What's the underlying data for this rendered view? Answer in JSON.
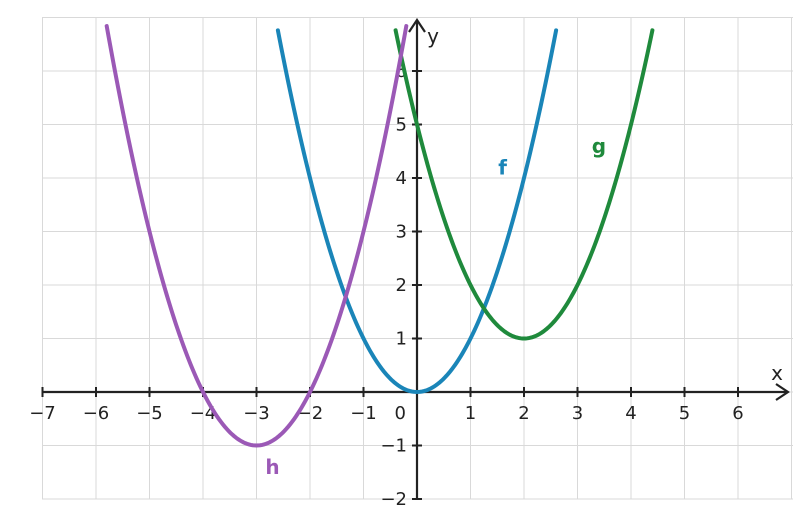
{
  "chart_data": {
    "type": "line",
    "title": "",
    "xlabel": "x",
    "ylabel": "y",
    "xlim": [
      -7,
      7
    ],
    "ylim": [
      -2,
      7
    ],
    "x_ticks": [
      -7,
      -6,
      -5,
      -4,
      -3,
      -2,
      -1,
      1,
      2,
      3,
      4,
      5,
      6
    ],
    "y_ticks": [
      -2,
      -1,
      1,
      2,
      3,
      4,
      5,
      6
    ],
    "x_tick_labels": [
      "−7",
      "−6",
      "−5",
      "−4",
      "−3",
      "−2",
      "−1",
      "1",
      "2",
      "3",
      "4",
      "5",
      "6"
    ],
    "y_tick_labels": [
      "−2",
      "−1",
      "1",
      "2",
      "3",
      "4",
      "5",
      "6"
    ],
    "origin_label": "0",
    "grid": true,
    "series": [
      {
        "name": "f",
        "color": "#1a85b8",
        "vertex": [
          0,
          0
        ],
        "x_range": [
          -2.6,
          2.6
        ],
        "label_at": [
          1.6,
          4.2
        ]
      },
      {
        "name": "g",
        "color": "#1f8a3c",
        "vertex": [
          2,
          1
        ],
        "x_range": [
          -0.4,
          4.4
        ],
        "label_at": [
          3.4,
          4.6
        ]
      },
      {
        "name": "h",
        "color": "#9b59b6",
        "vertex": [
          -3,
          -1
        ],
        "x_range": [
          -5.8,
          -0.2
        ],
        "label_at": [
          -2.7,
          -1.4
        ]
      }
    ]
  }
}
